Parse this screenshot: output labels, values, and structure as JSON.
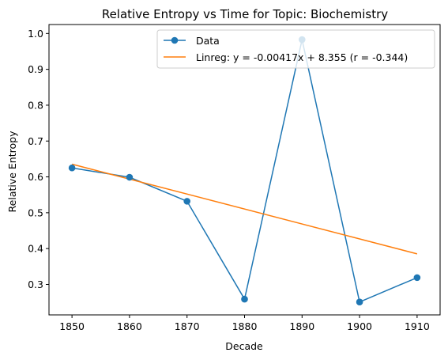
{
  "chart_data": {
    "type": "line",
    "title": "Relative Entropy vs Time for Topic: Biochemistry",
    "xlabel": "Decade",
    "ylabel": "Relative Entropy",
    "xlim": [
      1846,
      1914
    ],
    "ylim": [
      0.215,
      1.025
    ],
    "x_ticks": [
      1850,
      1860,
      1870,
      1880,
      1890,
      1900,
      1910
    ],
    "y_ticks": [
      0.3,
      0.4,
      0.5,
      0.6,
      0.7,
      0.8,
      0.9,
      1.0
    ],
    "x_tick_labels": [
      "1850",
      "1860",
      "1870",
      "1880",
      "1890",
      "1900",
      "1910"
    ],
    "y_tick_labels": [
      "0.3",
      "0.4",
      "0.5",
      "0.6",
      "0.7",
      "0.8",
      "0.9",
      "1.0"
    ],
    "grid": false,
    "legend_position": "top-right",
    "series": [
      {
        "name": "Data",
        "color": "#1f77b4",
        "marker": "circle",
        "x": [
          1850,
          1860,
          1870,
          1880,
          1890,
          1900,
          1910
        ],
        "y": [
          0.625,
          0.599,
          0.532,
          0.259,
          0.983,
          0.251,
          0.319
        ]
      },
      {
        "name": "Linreg: y = -0.00417x + 8.355 (r = -0.344)",
        "color": "#ff7f0e",
        "marker": "none",
        "x": [
          1850,
          1910
        ],
        "y": [
          0.6355,
          0.3853
        ]
      }
    ]
  }
}
